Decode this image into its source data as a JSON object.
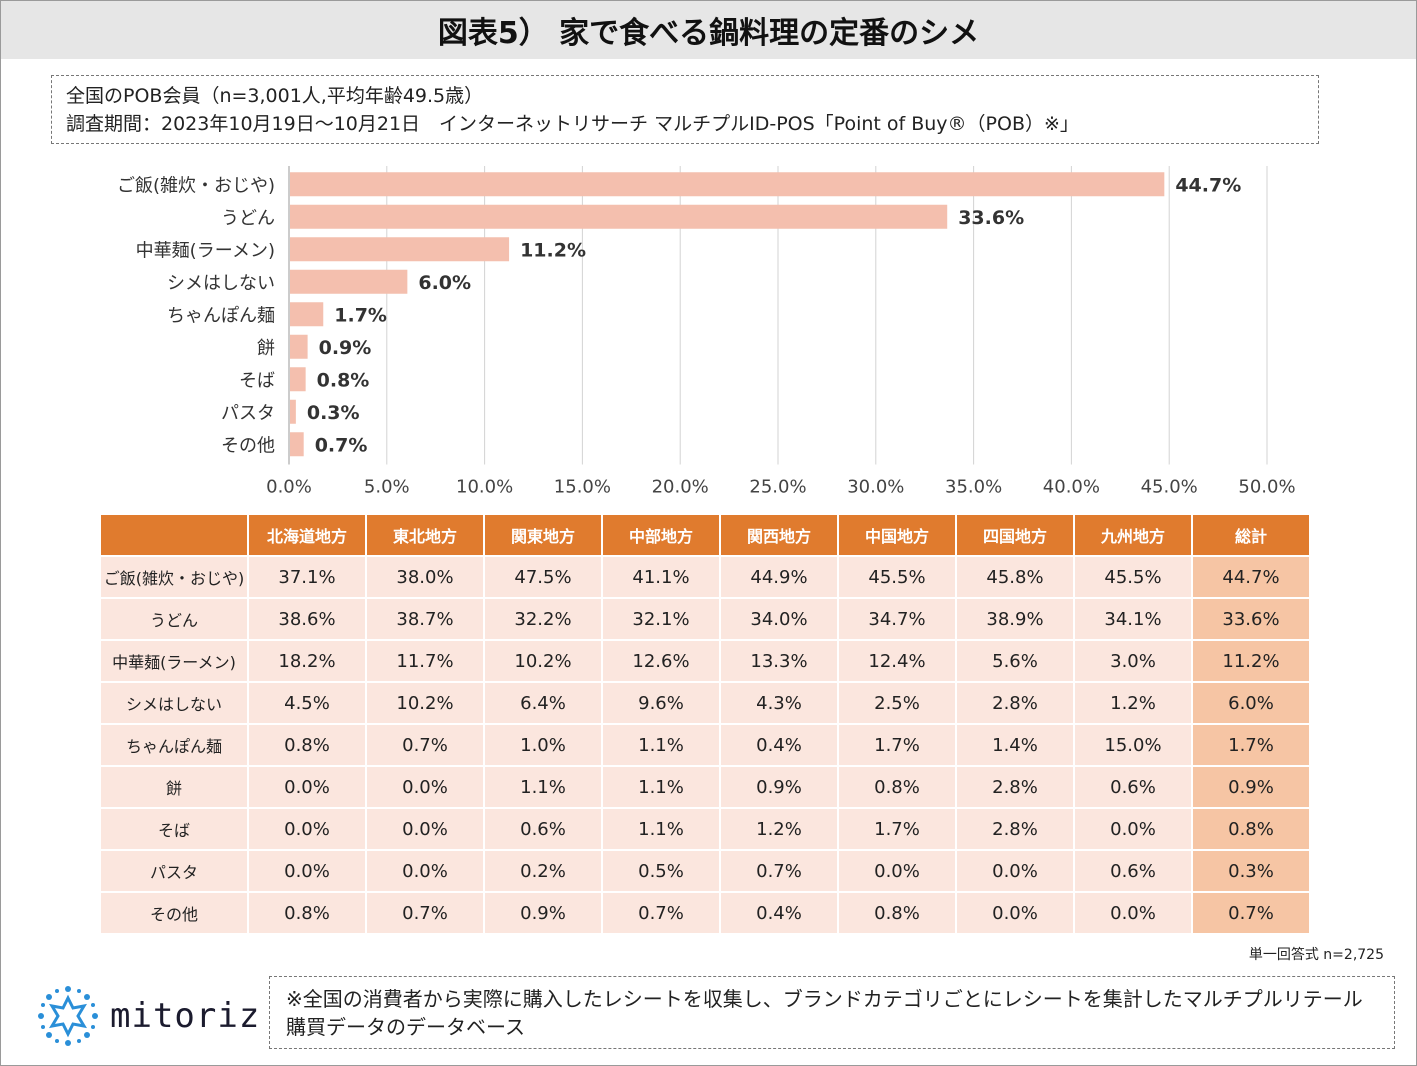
{
  "title": "図表5） 家で食べる鍋料理の定番のシメ",
  "survey": {
    "line1": "全国のPOB会員（n=3,001人,平均年齢49.5歳）",
    "line2": "調査期間：2023年10月19日～10月21日　インターネットリサーチ マルチプルID-POS「Point of Buy®（POB）※」"
  },
  "colors": {
    "bar": "#f4bfae",
    "header": "#e07b2e",
    "cell": "#fbe6de",
    "total": "#f6c5a4"
  },
  "chart_data": {
    "type": "bar",
    "orientation": "horizontal",
    "categories": [
      "ご飯(雑炊・おじや)",
      "うどん",
      "中華麺(ラーメン)",
      "シメはしない",
      "ちゃんぽん麺",
      "餅",
      "そば",
      "パスタ",
      "その他"
    ],
    "values": [
      44.7,
      33.6,
      11.2,
      6.0,
      1.7,
      0.9,
      0.8,
      0.3,
      0.7
    ],
    "value_labels": [
      "44.7%",
      "33.6%",
      "11.2%",
      "6.0%",
      "1.7%",
      "0.9%",
      "0.8%",
      "0.3%",
      "0.7%"
    ],
    "xlim": [
      0,
      50
    ],
    "xticks": [
      "0.0%",
      "5.0%",
      "10.0%",
      "15.0%",
      "20.0%",
      "25.0%",
      "30.0%",
      "35.0%",
      "40.0%",
      "45.0%",
      "50.0%"
    ],
    "grid": true
  },
  "table": {
    "headers": [
      "北海道地方",
      "東北地方",
      "関東地方",
      "中部地方",
      "関西地方",
      "中国地方",
      "四国地方",
      "九州地方",
      "総計"
    ],
    "rows": [
      {
        "label": "ご飯(雑炊・おじや)",
        "cells": [
          "37.1%",
          "38.0%",
          "47.5%",
          "41.1%",
          "44.9%",
          "45.5%",
          "45.8%",
          "45.5%",
          "44.7%"
        ]
      },
      {
        "label": "うどん",
        "cells": [
          "38.6%",
          "38.7%",
          "32.2%",
          "32.1%",
          "34.0%",
          "34.7%",
          "38.9%",
          "34.1%",
          "33.6%"
        ]
      },
      {
        "label": "中華麺(ラーメン)",
        "cells": [
          "18.2%",
          "11.7%",
          "10.2%",
          "12.6%",
          "13.3%",
          "12.4%",
          "5.6%",
          "3.0%",
          "11.2%"
        ]
      },
      {
        "label": "シメはしない",
        "cells": [
          "4.5%",
          "10.2%",
          "6.4%",
          "9.6%",
          "4.3%",
          "2.5%",
          "2.8%",
          "1.2%",
          "6.0%"
        ]
      },
      {
        "label": "ちゃんぽん麺",
        "cells": [
          "0.8%",
          "0.7%",
          "1.0%",
          "1.1%",
          "0.4%",
          "1.7%",
          "1.4%",
          "15.0%",
          "1.7%"
        ]
      },
      {
        "label": "餅",
        "cells": [
          "0.0%",
          "0.0%",
          "1.1%",
          "1.1%",
          "0.9%",
          "0.8%",
          "2.8%",
          "0.6%",
          "0.9%"
        ]
      },
      {
        "label": "そば",
        "cells": [
          "0.0%",
          "0.0%",
          "0.6%",
          "1.1%",
          "1.2%",
          "1.7%",
          "2.8%",
          "0.0%",
          "0.8%"
        ]
      },
      {
        "label": "パスタ",
        "cells": [
          "0.0%",
          "0.0%",
          "0.2%",
          "0.5%",
          "0.7%",
          "0.0%",
          "0.0%",
          "0.6%",
          "0.3%"
        ]
      },
      {
        "label": "その他",
        "cells": [
          "0.8%",
          "0.7%",
          "0.9%",
          "0.7%",
          "0.4%",
          "0.8%",
          "0.0%",
          "0.0%",
          "0.7%"
        ]
      }
    ]
  },
  "note_n": "単一回答式 n=2,725",
  "logo": {
    "text": "mitoriz",
    "icon": "starburst-logo-icon"
  },
  "footnote": "※全国の消費者から実際に購入したレシートを収集し、ブランドカテゴリごとにレシートを集計したマルチプルリテール購買データのデータベース"
}
